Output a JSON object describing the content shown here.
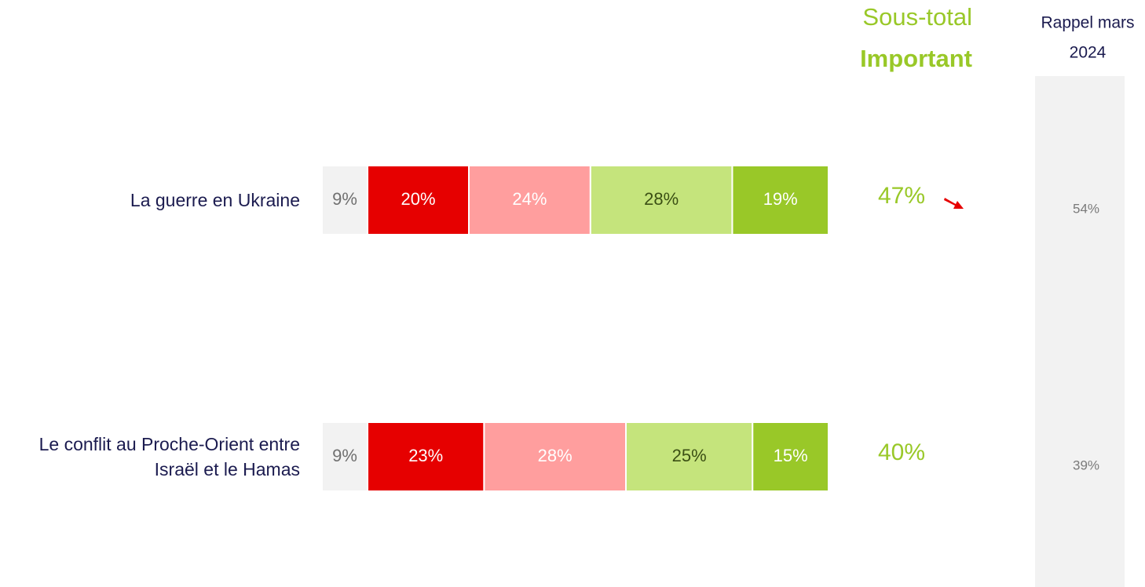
{
  "chart_data": {
    "type": "stacked-bar-horizontal",
    "categories": [
      "La guerre en Ukraine",
      "Le conflit au Proche-Orient entre Israël et le Hamas"
    ],
    "series": [
      {
        "color": "#f2f2f2",
        "label_color": "#707070",
        "values": [
          9,
          9
        ],
        "value_labels": [
          "9%",
          "9%"
        ]
      },
      {
        "color": "#e60000",
        "label_color": "#ffffff",
        "values": [
          20,
          23
        ],
        "value_labels": [
          "20%",
          "23%"
        ]
      },
      {
        "color": "#ff9e9e",
        "label_color": "#ffffff",
        "values": [
          24,
          28
        ],
        "value_labels": [
          "24%",
          "28%"
        ]
      },
      {
        "color": "#c5e47c",
        "label_color": "#3b4f14",
        "values": [
          28,
          25
        ],
        "value_labels": [
          "28%",
          "25%"
        ]
      },
      {
        "color": "#99c828",
        "label_color": "#ffffff",
        "values": [
          19,
          15
        ],
        "value_labels": [
          "19%",
          "15%"
        ]
      }
    ],
    "subtotal": {
      "header": [
        "Sous-total",
        "Important"
      ],
      "color": "#99c828",
      "values": [
        47,
        40
      ],
      "value_labels": [
        "47%",
        "40%"
      ]
    },
    "recall": {
      "header": [
        "Rappel mars",
        "2024"
      ],
      "values": [
        54,
        39
      ],
      "value_labels": [
        "54%",
        "39%"
      ]
    }
  }
}
